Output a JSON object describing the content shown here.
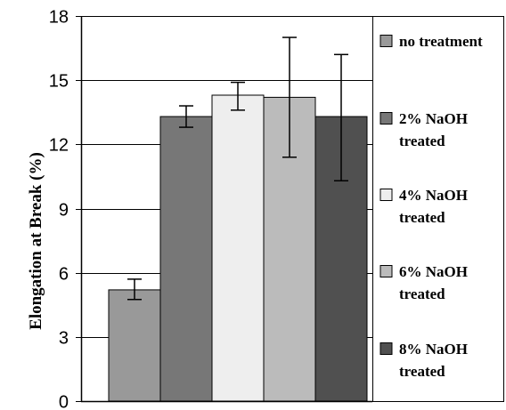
{
  "chart_data": {
    "type": "bar",
    "title": "",
    "xlabel": "",
    "ylabel": "Elongation at Break (%)",
    "ylim": [
      0,
      18
    ],
    "yticks": [
      "0",
      "3",
      "6",
      "9",
      "12",
      "15",
      "18"
    ],
    "grid": true,
    "legend_position": "right",
    "categories": [],
    "series": [
      {
        "name": "no treatment",
        "lines": [
          "no treatment"
        ],
        "value": 5.2,
        "err_low": 4.75,
        "err_high": 5.7,
        "color": "#999999"
      },
      {
        "name": "2% NaOH treated",
        "lines": [
          "2% NaOH",
          "treated"
        ],
        "value": 13.3,
        "err_low": 12.8,
        "err_high": 13.8,
        "color": "#777777"
      },
      {
        "name": "4% NaOH treated",
        "lines": [
          "4% NaOH",
          "treated"
        ],
        "value": 14.3,
        "err_low": 13.6,
        "err_high": 14.9,
        "color": "#eeeeee"
      },
      {
        "name": "6% NaOH treated",
        "lines": [
          "6% NaOH",
          "treated"
        ],
        "value": 14.2,
        "err_low": 11.4,
        "err_high": 17.0,
        "color": "#bbbbbb"
      },
      {
        "name": "8% NaOH treated",
        "lines": [
          "8% NaOH",
          "treated"
        ],
        "value": 13.3,
        "err_low": 10.3,
        "err_high": 16.2,
        "color": "#505050"
      }
    ]
  }
}
